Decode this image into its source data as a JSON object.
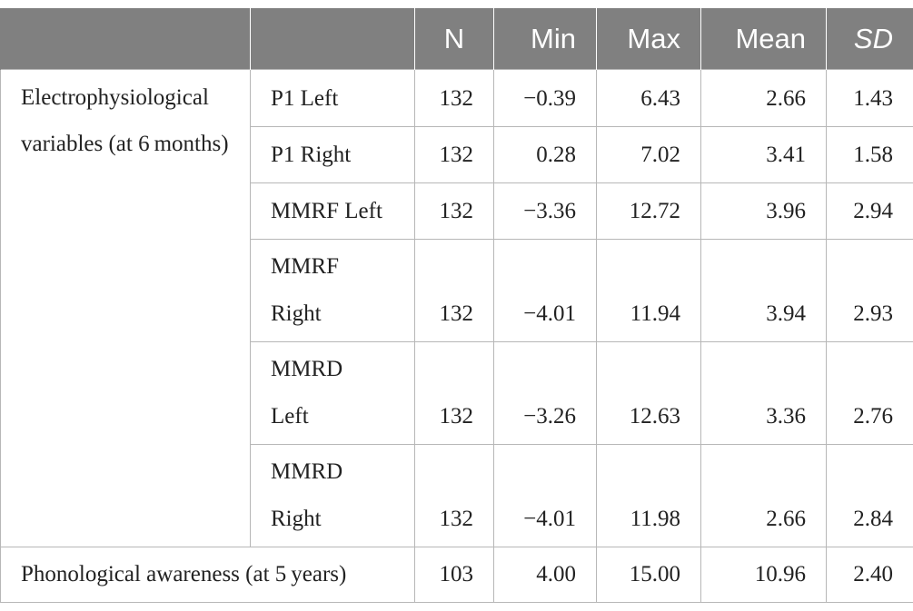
{
  "table": {
    "headers": {
      "group": "",
      "variable": "",
      "n": "N",
      "min": "Min",
      "max": "Max",
      "mean": "Mean",
      "sd": "SD"
    },
    "group_label": "Electrophysiological variables (at 6 months)",
    "rows": [
      {
        "variable": "P1 Left",
        "n": "132",
        "min": "−0.39",
        "max": "6.43",
        "mean": "2.66",
        "sd": "1.43"
      },
      {
        "variable": "P1 Right",
        "n": "132",
        "min": "0.28",
        "max": "7.02",
        "mean": "3.41",
        "sd": "1.58"
      },
      {
        "variable": "MMRF Left",
        "n": "132",
        "min": "−3.36",
        "max": "12.72",
        "mean": "3.96",
        "sd": "2.94"
      },
      {
        "variable": "MMRF Right",
        "n": "132",
        "min": "−4.01",
        "max": "11.94",
        "mean": "3.94",
        "sd": "2.93"
      },
      {
        "variable": "MMRD Left",
        "n": "132",
        "min": "−3.26",
        "max": "12.63",
        "mean": "3.36",
        "sd": "2.76"
      },
      {
        "variable": "MMRD Right",
        "n": "132",
        "min": "−4.01",
        "max": "11.98",
        "mean": "2.66",
        "sd": "2.84"
      }
    ],
    "summary_row": {
      "label": "Phonological awareness (at 5 years)",
      "n": "103",
      "min": "4.00",
      "max": "15.00",
      "mean": "10.96",
      "sd": "2.40"
    }
  }
}
